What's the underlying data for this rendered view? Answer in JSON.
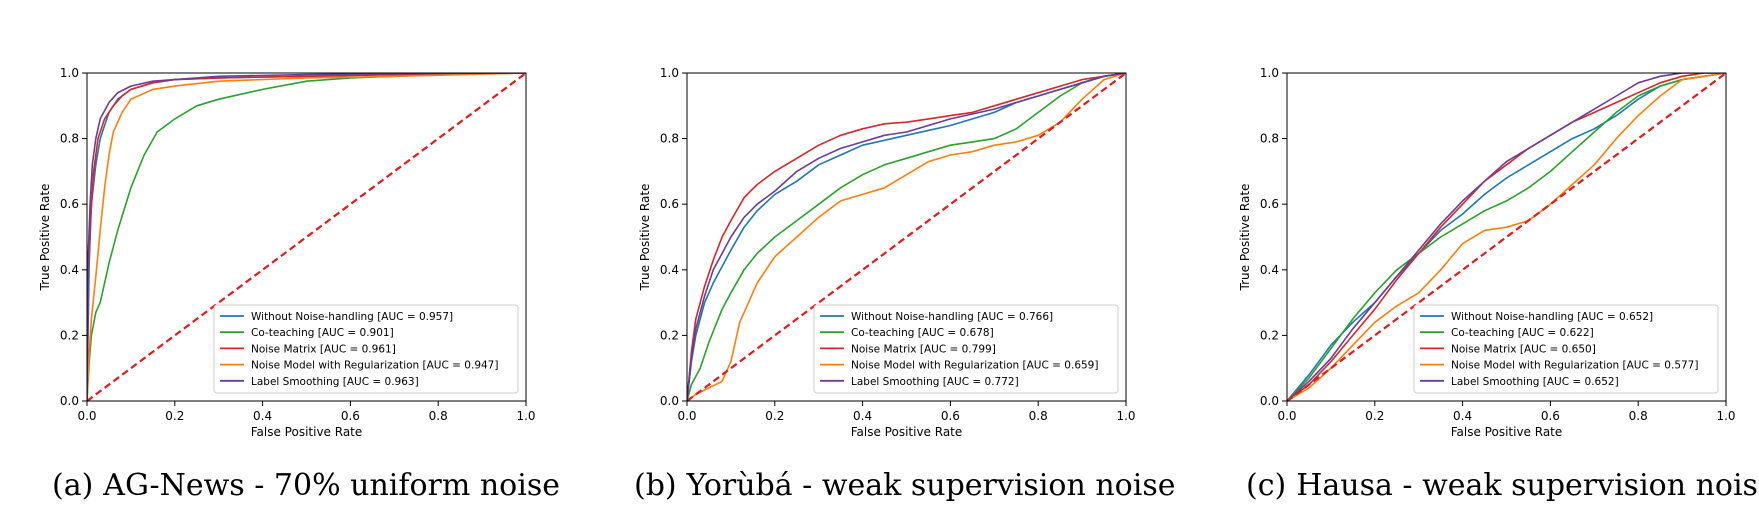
{
  "chart_data": [
    {
      "type": "line",
      "caption_label": "(a)",
      "caption_text": "AG-News - 70% uniform noise",
      "xlabel": "False Positive Rate",
      "ylabel": "True Positive Rate",
      "xlim": [
        0,
        1
      ],
      "ylim": [
        0,
        1
      ],
      "ticks": [
        "0.0",
        "0.2",
        "0.4",
        "0.6",
        "0.8",
        "1.0"
      ],
      "legend_position": "lower right",
      "series": [
        {
          "name": "Without Noise-handling [AUC = 0.957]",
          "color": "#1f77b4",
          "x": [
            0,
            0.005,
            0.01,
            0.02,
            0.03,
            0.05,
            0.07,
            0.1,
            0.15,
            0.2,
            0.3,
            0.5,
            0.7,
            1.0
          ],
          "y": [
            0,
            0.42,
            0.6,
            0.72,
            0.8,
            0.88,
            0.92,
            0.95,
            0.97,
            0.98,
            0.985,
            0.99,
            0.995,
            1.0
          ]
        },
        {
          "name": "Co-teaching [AUC = 0.901]",
          "color": "#2ca02c",
          "x": [
            0,
            0.005,
            0.01,
            0.02,
            0.03,
            0.04,
            0.05,
            0.07,
            0.1,
            0.13,
            0.16,
            0.2,
            0.25,
            0.3,
            0.4,
            0.5,
            0.6,
            0.7,
            0.8,
            1.0
          ],
          "y": [
            0,
            0.12,
            0.2,
            0.27,
            0.3,
            0.36,
            0.42,
            0.52,
            0.65,
            0.75,
            0.82,
            0.86,
            0.9,
            0.92,
            0.95,
            0.975,
            0.985,
            0.99,
            0.995,
            1.0
          ]
        },
        {
          "name": "Noise Matrix [AUC = 0.961]",
          "color": "#d62728",
          "x": [
            0,
            0.003,
            0.008,
            0.015,
            0.025,
            0.04,
            0.06,
            0.08,
            0.1,
            0.15,
            0.2,
            0.3,
            0.5,
            0.7,
            1.0
          ],
          "y": [
            0,
            0.4,
            0.55,
            0.7,
            0.8,
            0.86,
            0.9,
            0.93,
            0.95,
            0.97,
            0.98,
            0.985,
            0.99,
            0.995,
            1.0
          ]
        },
        {
          "name": "Noise Model with Regularization [AUC = 0.947]",
          "color": "#ff7f0e",
          "x": [
            0,
            0.005,
            0.01,
            0.02,
            0.03,
            0.04,
            0.05,
            0.06,
            0.08,
            0.1,
            0.15,
            0.2,
            0.3,
            0.5,
            0.7,
            1.0
          ],
          "y": [
            0,
            0.15,
            0.25,
            0.38,
            0.52,
            0.65,
            0.75,
            0.82,
            0.88,
            0.92,
            0.95,
            0.96,
            0.975,
            0.985,
            0.99,
            1.0
          ]
        },
        {
          "name": "Label Smoothing [AUC = 0.963]",
          "color": "#6a3d9a",
          "x": [
            0,
            0.003,
            0.007,
            0.012,
            0.02,
            0.03,
            0.05,
            0.07,
            0.1,
            0.15,
            0.2,
            0.3,
            0.5,
            0.7,
            1.0
          ],
          "y": [
            0,
            0.45,
            0.6,
            0.72,
            0.8,
            0.86,
            0.91,
            0.94,
            0.96,
            0.975,
            0.98,
            0.99,
            0.995,
            0.998,
            1.0
          ]
        }
      ],
      "diagonal": {
        "color": "#e31a1c",
        "style": "dashed"
      }
    },
    {
      "type": "line",
      "caption_label": "(b)",
      "caption_text": "Yorùbá  - weak supervision noise",
      "xlabel": "False Positive Rate",
      "ylabel": "True Positive Rate",
      "xlim": [
        0,
        1
      ],
      "ylim": [
        0,
        1
      ],
      "ticks": [
        "0.0",
        "0.2",
        "0.4",
        "0.6",
        "0.8",
        "1.0"
      ],
      "legend_position": "lower right",
      "series": [
        {
          "name": "Without Noise-handling [AUC = 0.766]",
          "color": "#1f77b4",
          "x": [
            0,
            0.01,
            0.02,
            0.04,
            0.06,
            0.08,
            0.1,
            0.13,
            0.16,
            0.2,
            0.25,
            0.3,
            0.35,
            0.4,
            0.5,
            0.6,
            0.65,
            0.7,
            0.75,
            0.8,
            0.85,
            0.9,
            0.95,
            1.0
          ],
          "y": [
            0,
            0.12,
            0.2,
            0.3,
            0.36,
            0.41,
            0.46,
            0.53,
            0.58,
            0.63,
            0.67,
            0.72,
            0.75,
            0.78,
            0.81,
            0.84,
            0.86,
            0.88,
            0.91,
            0.93,
            0.95,
            0.97,
            0.99,
            1.0
          ]
        },
        {
          "name": "Co-teaching [AUC = 0.678]",
          "color": "#2ca02c",
          "x": [
            0,
            0.01,
            0.03,
            0.05,
            0.08,
            0.1,
            0.13,
            0.16,
            0.2,
            0.25,
            0.3,
            0.35,
            0.4,
            0.45,
            0.5,
            0.55,
            0.6,
            0.65,
            0.7,
            0.75,
            0.8,
            0.85,
            0.9,
            0.95,
            1.0
          ],
          "y": [
            0,
            0.05,
            0.1,
            0.18,
            0.28,
            0.33,
            0.4,
            0.45,
            0.5,
            0.55,
            0.6,
            0.65,
            0.69,
            0.72,
            0.74,
            0.76,
            0.78,
            0.79,
            0.8,
            0.83,
            0.88,
            0.93,
            0.97,
            0.99,
            1.0
          ]
        },
        {
          "name": "Noise Matrix [AUC = 0.799]",
          "color": "#d62728",
          "x": [
            0,
            0.01,
            0.02,
            0.04,
            0.06,
            0.08,
            0.1,
            0.13,
            0.16,
            0.2,
            0.25,
            0.3,
            0.35,
            0.4,
            0.45,
            0.5,
            0.55,
            0.6,
            0.65,
            0.7,
            0.75,
            0.8,
            0.85,
            0.9,
            0.95,
            1.0
          ],
          "y": [
            0,
            0.15,
            0.25,
            0.35,
            0.43,
            0.5,
            0.55,
            0.62,
            0.66,
            0.7,
            0.74,
            0.78,
            0.81,
            0.83,
            0.845,
            0.85,
            0.86,
            0.87,
            0.88,
            0.9,
            0.92,
            0.94,
            0.96,
            0.98,
            0.99,
            1.0
          ]
        },
        {
          "name": "Noise Model with Regularization [AUC = 0.659]",
          "color": "#ff7f0e",
          "x": [
            0,
            0.02,
            0.05,
            0.08,
            0.1,
            0.11,
            0.12,
            0.14,
            0.16,
            0.2,
            0.25,
            0.3,
            0.35,
            0.4,
            0.45,
            0.5,
            0.55,
            0.6,
            0.65,
            0.7,
            0.75,
            0.8,
            0.85,
            0.9,
            0.95,
            1.0
          ],
          "y": [
            0,
            0.02,
            0.04,
            0.06,
            0.12,
            0.18,
            0.24,
            0.3,
            0.36,
            0.44,
            0.5,
            0.56,
            0.61,
            0.63,
            0.65,
            0.69,
            0.73,
            0.75,
            0.76,
            0.78,
            0.79,
            0.81,
            0.85,
            0.92,
            0.98,
            1.0
          ]
        },
        {
          "name": "Label Smoothing [AUC = 0.772]",
          "color": "#6a3d9a",
          "x": [
            0,
            0.01,
            0.02,
            0.04,
            0.06,
            0.08,
            0.1,
            0.13,
            0.16,
            0.2,
            0.25,
            0.3,
            0.35,
            0.4,
            0.45,
            0.5,
            0.6,
            0.7,
            0.75,
            0.8,
            0.85,
            0.9,
            0.95,
            1.0
          ],
          "y": [
            0,
            0.13,
            0.22,
            0.32,
            0.4,
            0.45,
            0.5,
            0.56,
            0.6,
            0.64,
            0.7,
            0.74,
            0.77,
            0.79,
            0.81,
            0.82,
            0.86,
            0.89,
            0.91,
            0.93,
            0.95,
            0.97,
            0.99,
            1.0
          ]
        }
      ],
      "diagonal": {
        "color": "#e31a1c",
        "style": "dashed"
      }
    },
    {
      "type": "line",
      "caption_label": "(c)",
      "caption_text": "Hausa - weak supervision noise",
      "xlabel": "False Positive Rate",
      "ylabel": "True Positive Rate",
      "xlim": [
        0,
        1
      ],
      "ylim": [
        0,
        1
      ],
      "ticks": [
        "0.0",
        "0.2",
        "0.4",
        "0.6",
        "0.8",
        "1.0"
      ],
      "legend_position": "lower right",
      "series": [
        {
          "name": "Without Noise-handling [AUC = 0.652]",
          "color": "#1f77b4",
          "x": [
            0,
            0.05,
            0.1,
            0.15,
            0.2,
            0.25,
            0.3,
            0.35,
            0.4,
            0.45,
            0.5,
            0.55,
            0.6,
            0.65,
            0.7,
            0.75,
            0.8,
            0.85,
            0.9,
            0.95,
            1.0
          ],
          "y": [
            0,
            0.08,
            0.17,
            0.24,
            0.3,
            0.38,
            0.45,
            0.52,
            0.57,
            0.63,
            0.68,
            0.72,
            0.76,
            0.8,
            0.83,
            0.87,
            0.92,
            0.96,
            0.98,
            0.99,
            1.0
          ]
        },
        {
          "name": "Co-teaching [AUC = 0.622]",
          "color": "#2ca02c",
          "x": [
            0,
            0.05,
            0.1,
            0.15,
            0.2,
            0.25,
            0.3,
            0.35,
            0.4,
            0.45,
            0.5,
            0.55,
            0.6,
            0.65,
            0.7,
            0.75,
            0.8,
            0.85,
            0.9,
            0.95,
            1.0
          ],
          "y": [
            0,
            0.07,
            0.16,
            0.25,
            0.33,
            0.4,
            0.45,
            0.5,
            0.54,
            0.58,
            0.61,
            0.65,
            0.7,
            0.76,
            0.82,
            0.88,
            0.93,
            0.96,
            0.98,
            0.99,
            1.0
          ]
        },
        {
          "name": "Noise Matrix [AUC = 0.650]",
          "color": "#d62728",
          "x": [
            0,
            0.05,
            0.1,
            0.15,
            0.2,
            0.25,
            0.3,
            0.35,
            0.4,
            0.45,
            0.5,
            0.55,
            0.6,
            0.65,
            0.7,
            0.75,
            0.8,
            0.85,
            0.9,
            0.95,
            1.0
          ],
          "y": [
            0,
            0.05,
            0.12,
            0.2,
            0.28,
            0.37,
            0.45,
            0.53,
            0.6,
            0.67,
            0.72,
            0.77,
            0.81,
            0.85,
            0.88,
            0.91,
            0.94,
            0.97,
            0.99,
            1.0,
            1.0
          ]
        },
        {
          "name": "Noise Model with Regularization [AUC = 0.577]",
          "color": "#ff7f0e",
          "x": [
            0,
            0.05,
            0.1,
            0.15,
            0.2,
            0.25,
            0.3,
            0.35,
            0.4,
            0.45,
            0.5,
            0.55,
            0.6,
            0.65,
            0.7,
            0.75,
            0.8,
            0.85,
            0.9,
            0.95,
            1.0
          ],
          "y": [
            0,
            0.04,
            0.1,
            0.17,
            0.24,
            0.29,
            0.33,
            0.4,
            0.48,
            0.52,
            0.53,
            0.55,
            0.6,
            0.66,
            0.72,
            0.8,
            0.87,
            0.93,
            0.98,
            0.99,
            1.0
          ]
        },
        {
          "name": "Label Smoothing [AUC = 0.652]",
          "color": "#6a3d9a",
          "x": [
            0,
            0.05,
            0.1,
            0.15,
            0.2,
            0.25,
            0.3,
            0.35,
            0.4,
            0.45,
            0.5,
            0.55,
            0.6,
            0.65,
            0.7,
            0.75,
            0.8,
            0.85,
            0.9,
            0.95,
            1.0
          ],
          "y": [
            0,
            0.06,
            0.13,
            0.22,
            0.3,
            0.38,
            0.46,
            0.54,
            0.61,
            0.67,
            0.73,
            0.77,
            0.81,
            0.85,
            0.89,
            0.93,
            0.97,
            0.99,
            1.0,
            1.0,
            1.0
          ]
        }
      ],
      "diagonal": {
        "color": "#e31a1c",
        "style": "dashed"
      }
    }
  ]
}
